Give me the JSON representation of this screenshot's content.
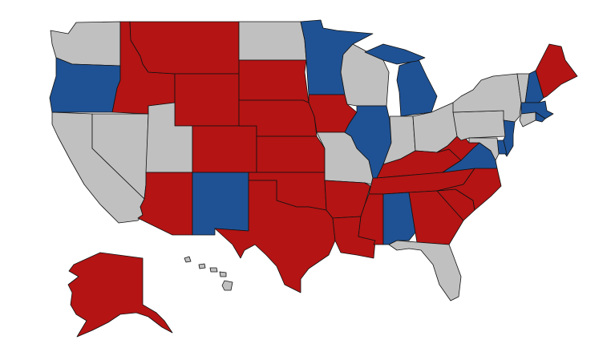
{
  "colors": {
    "red": "#b41414",
    "blue": "#1f5294",
    "gray": "#c0c0c0"
  },
  "states": [
    {
      "id": "WA",
      "party": "gray"
    },
    {
      "id": "OR",
      "party": "blue"
    },
    {
      "id": "CA",
      "party": "gray"
    },
    {
      "id": "NV",
      "party": "gray"
    },
    {
      "id": "ID",
      "party": "red"
    },
    {
      "id": "MT",
      "party": "red"
    },
    {
      "id": "WY",
      "party": "red"
    },
    {
      "id": "UT",
      "party": "gray"
    },
    {
      "id": "CO",
      "party": "red"
    },
    {
      "id": "AZ",
      "party": "red"
    },
    {
      "id": "NM",
      "party": "blue"
    },
    {
      "id": "ND",
      "party": "gray"
    },
    {
      "id": "SD",
      "party": "red"
    },
    {
      "id": "NE",
      "party": "red"
    },
    {
      "id": "KS",
      "party": "red"
    },
    {
      "id": "OK",
      "party": "red"
    },
    {
      "id": "TX",
      "party": "red"
    },
    {
      "id": "MN",
      "party": "blue"
    },
    {
      "id": "IA",
      "party": "red"
    },
    {
      "id": "MO",
      "party": "gray"
    },
    {
      "id": "AR",
      "party": "red"
    },
    {
      "id": "LA",
      "party": "red"
    },
    {
      "id": "WI",
      "party": "gray"
    },
    {
      "id": "IL",
      "party": "blue"
    },
    {
      "id": "MI",
      "party": "blue"
    },
    {
      "id": "IN",
      "party": "gray"
    },
    {
      "id": "OH",
      "party": "gray"
    },
    {
      "id": "KY",
      "party": "red"
    },
    {
      "id": "TN",
      "party": "red"
    },
    {
      "id": "MS",
      "party": "red"
    },
    {
      "id": "AL",
      "party": "blue"
    },
    {
      "id": "GA",
      "party": "red"
    },
    {
      "id": "FL",
      "party": "gray"
    },
    {
      "id": "SC",
      "party": "red"
    },
    {
      "id": "NC",
      "party": "red"
    },
    {
      "id": "VA",
      "party": "blue"
    },
    {
      "id": "WV",
      "party": "red"
    },
    {
      "id": "PA",
      "party": "gray"
    },
    {
      "id": "NY",
      "party": "gray"
    },
    {
      "id": "VT",
      "party": "gray"
    },
    {
      "id": "NH",
      "party": "blue"
    },
    {
      "id": "ME",
      "party": "red"
    },
    {
      "id": "MA",
      "party": "blue"
    },
    {
      "id": "RI",
      "party": "blue"
    },
    {
      "id": "CT",
      "party": "gray"
    },
    {
      "id": "NJ",
      "party": "blue"
    },
    {
      "id": "DE",
      "party": "blue"
    },
    {
      "id": "MD",
      "party": "gray"
    },
    {
      "id": "AK",
      "party": "red"
    },
    {
      "id": "HI",
      "party": "gray"
    }
  ]
}
